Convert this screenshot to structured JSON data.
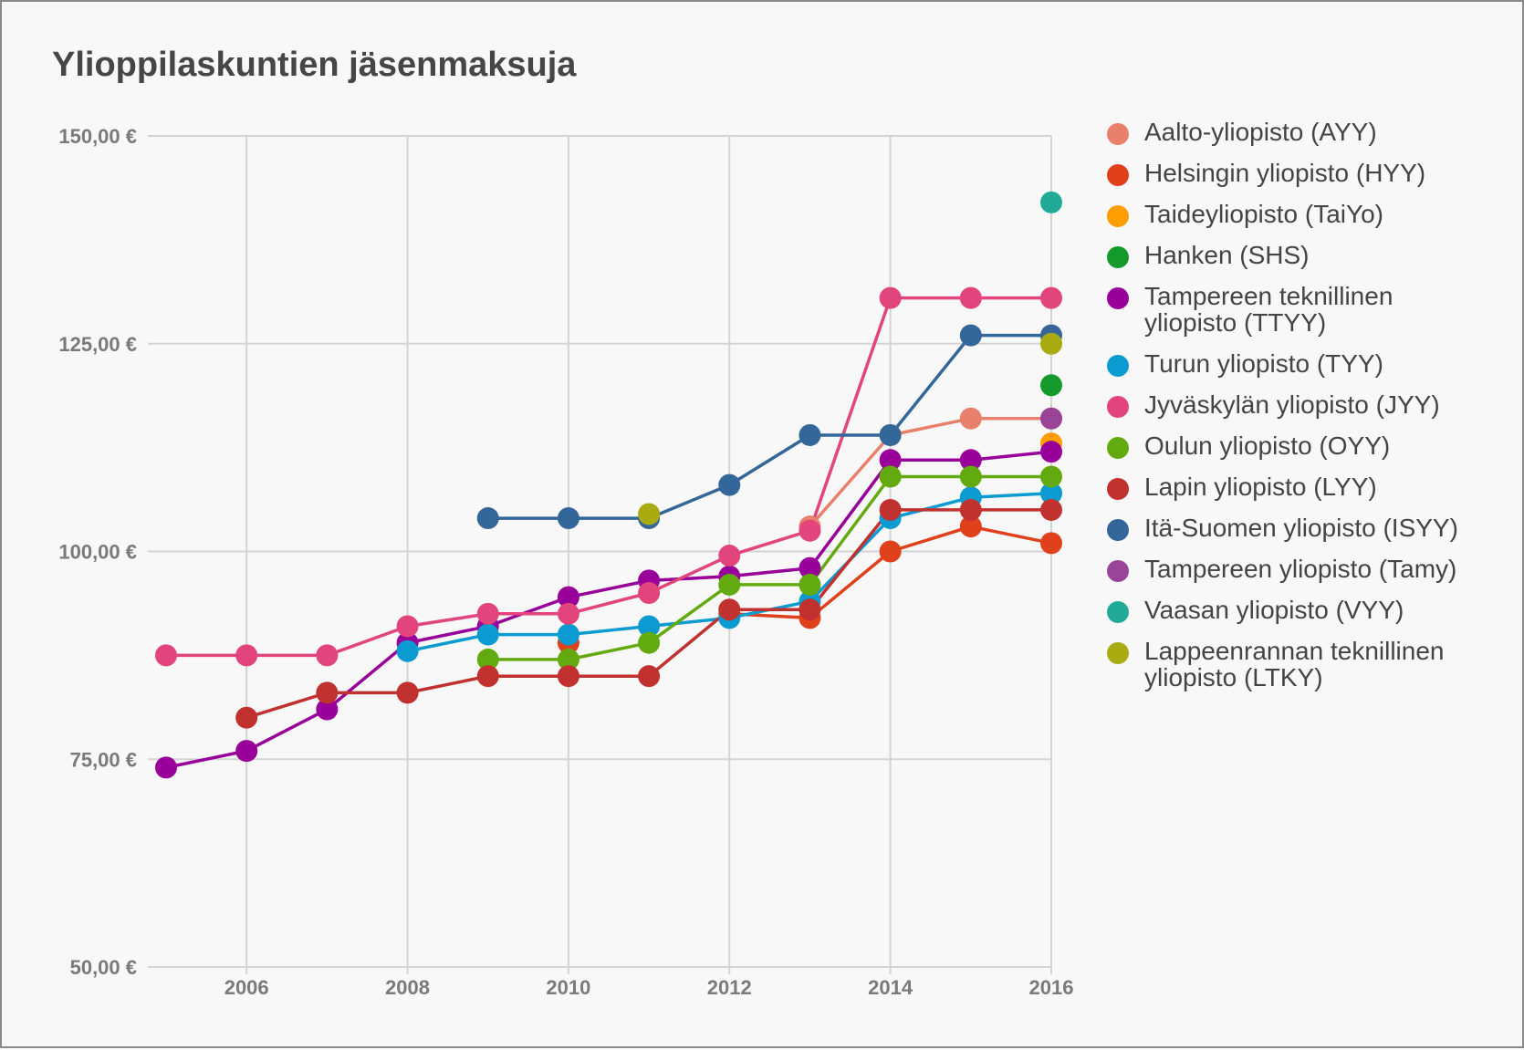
{
  "chart_data": {
    "type": "line",
    "title": "Ylioppilaskuntien jäsenmaksuja",
    "xlabel": "",
    "ylabel": "",
    "x_ticks": [
      "2006",
      "2008",
      "2010",
      "2012",
      "2014",
      "2016"
    ],
    "y_ticks": [
      "50,00 €",
      "75,00 €",
      "100,00 €",
      "125,00 €",
      "150,00 €"
    ],
    "xlim": [
      2005,
      2016
    ],
    "ylim": [
      50,
      150
    ],
    "grid": true,
    "legend_position": "right",
    "x": [
      2005,
      2006,
      2007,
      2008,
      2009,
      2010,
      2011,
      2012,
      2013,
      2014,
      2015,
      2016
    ],
    "series": [
      {
        "name": "Aalto-yliopisto (AYY)",
        "color": "#e8806b",
        "values": [
          null,
          null,
          null,
          null,
          null,
          null,
          null,
          null,
          103,
          114,
          116,
          116
        ]
      },
      {
        "name": "Helsingin yliopisto (HYY)",
        "color": "#e0401b",
        "values": [
          null,
          null,
          null,
          null,
          null,
          89,
          null,
          92.5,
          92,
          100,
          103,
          101
        ]
      },
      {
        "name": "Taideyliopisto (TaiYo)",
        "color": "#ff9e00",
        "values": [
          null,
          null,
          null,
          null,
          null,
          null,
          null,
          null,
          null,
          null,
          null,
          113
        ]
      },
      {
        "name": "Hanken (SHS)",
        "color": "#139a2a",
        "values": [
          null,
          null,
          null,
          null,
          null,
          null,
          null,
          null,
          null,
          null,
          null,
          120
        ]
      },
      {
        "name": "Tampereen teknillinen yliopisto (TTYY)",
        "color": "#980099",
        "values": [
          74,
          76,
          81,
          89,
          91,
          94.5,
          96.5,
          97,
          98,
          111,
          111,
          112
        ]
      },
      {
        "name": "Turun yliopisto (TYY)",
        "color": "#0b9bd1",
        "values": [
          null,
          null,
          null,
          88,
          90,
          90,
          91,
          92,
          94,
          104,
          106.5,
          107
        ]
      },
      {
        "name": "Jyväskylän yliopisto (JYY)",
        "color": "#e2457b",
        "values": [
          87.5,
          87.5,
          87.5,
          91,
          92.5,
          92.5,
          95,
          99.5,
          102.5,
          130.5,
          130.5,
          130.5
        ]
      },
      {
        "name": "Oulun yliopisto (OYY)",
        "color": "#63aa10",
        "values": [
          null,
          null,
          null,
          null,
          87,
          87,
          89,
          96,
          96,
          109,
          109,
          109
        ]
      },
      {
        "name": "Lapin yliopisto (LYY)",
        "color": "#c0312f",
        "values": [
          null,
          80,
          83,
          83,
          85,
          85,
          85,
          93,
          93,
          105,
          105,
          105
        ]
      },
      {
        "name": "Itä-Suomen yliopisto (ISYY)",
        "color": "#336699",
        "values": [
          null,
          null,
          null,
          null,
          104,
          104,
          104,
          108,
          114,
          114,
          126,
          126
        ]
      },
      {
        "name": "Tampereen yliopisto (Tamy)",
        "color": "#994499",
        "values": [
          null,
          null,
          null,
          null,
          null,
          null,
          null,
          null,
          null,
          null,
          null,
          116
        ]
      },
      {
        "name": "Vaasan yliopisto (VYY)",
        "color": "#22aa99",
        "values": [
          null,
          null,
          null,
          null,
          null,
          null,
          null,
          null,
          null,
          null,
          null,
          142
        ]
      },
      {
        "name": "Lappeenrannan teknillinen yliopisto (LTKY)",
        "color": "#aaaa11",
        "values": [
          null,
          null,
          null,
          null,
          null,
          null,
          104.5,
          null,
          null,
          null,
          null,
          125
        ]
      }
    ],
    "legend_lines": [
      [
        "Aalto-yliopisto (AYY)"
      ],
      [
        "Helsingin yliopisto (HYY)"
      ],
      [
        "Taideyliopisto (TaiYo)"
      ],
      [
        "Hanken (SHS)"
      ],
      [
        "Tampereen teknillinen",
        "yliopisto (TTYY)"
      ],
      [
        "Turun yliopisto (TYY)"
      ],
      [
        "Jyväskylän yliopisto (JYY)"
      ],
      [
        "Oulun yliopisto (OYY)"
      ],
      [
        "Lapin yliopisto (LYY)"
      ],
      [
        "Itä-Suomen yliopisto (ISYY)"
      ],
      [
        "Tampereen yliopisto (Tamy)"
      ],
      [
        "Vaasan yliopisto (VYY)"
      ],
      [
        "Lappeenrannan teknillinen",
        "yliopisto (LTKY)"
      ]
    ]
  }
}
